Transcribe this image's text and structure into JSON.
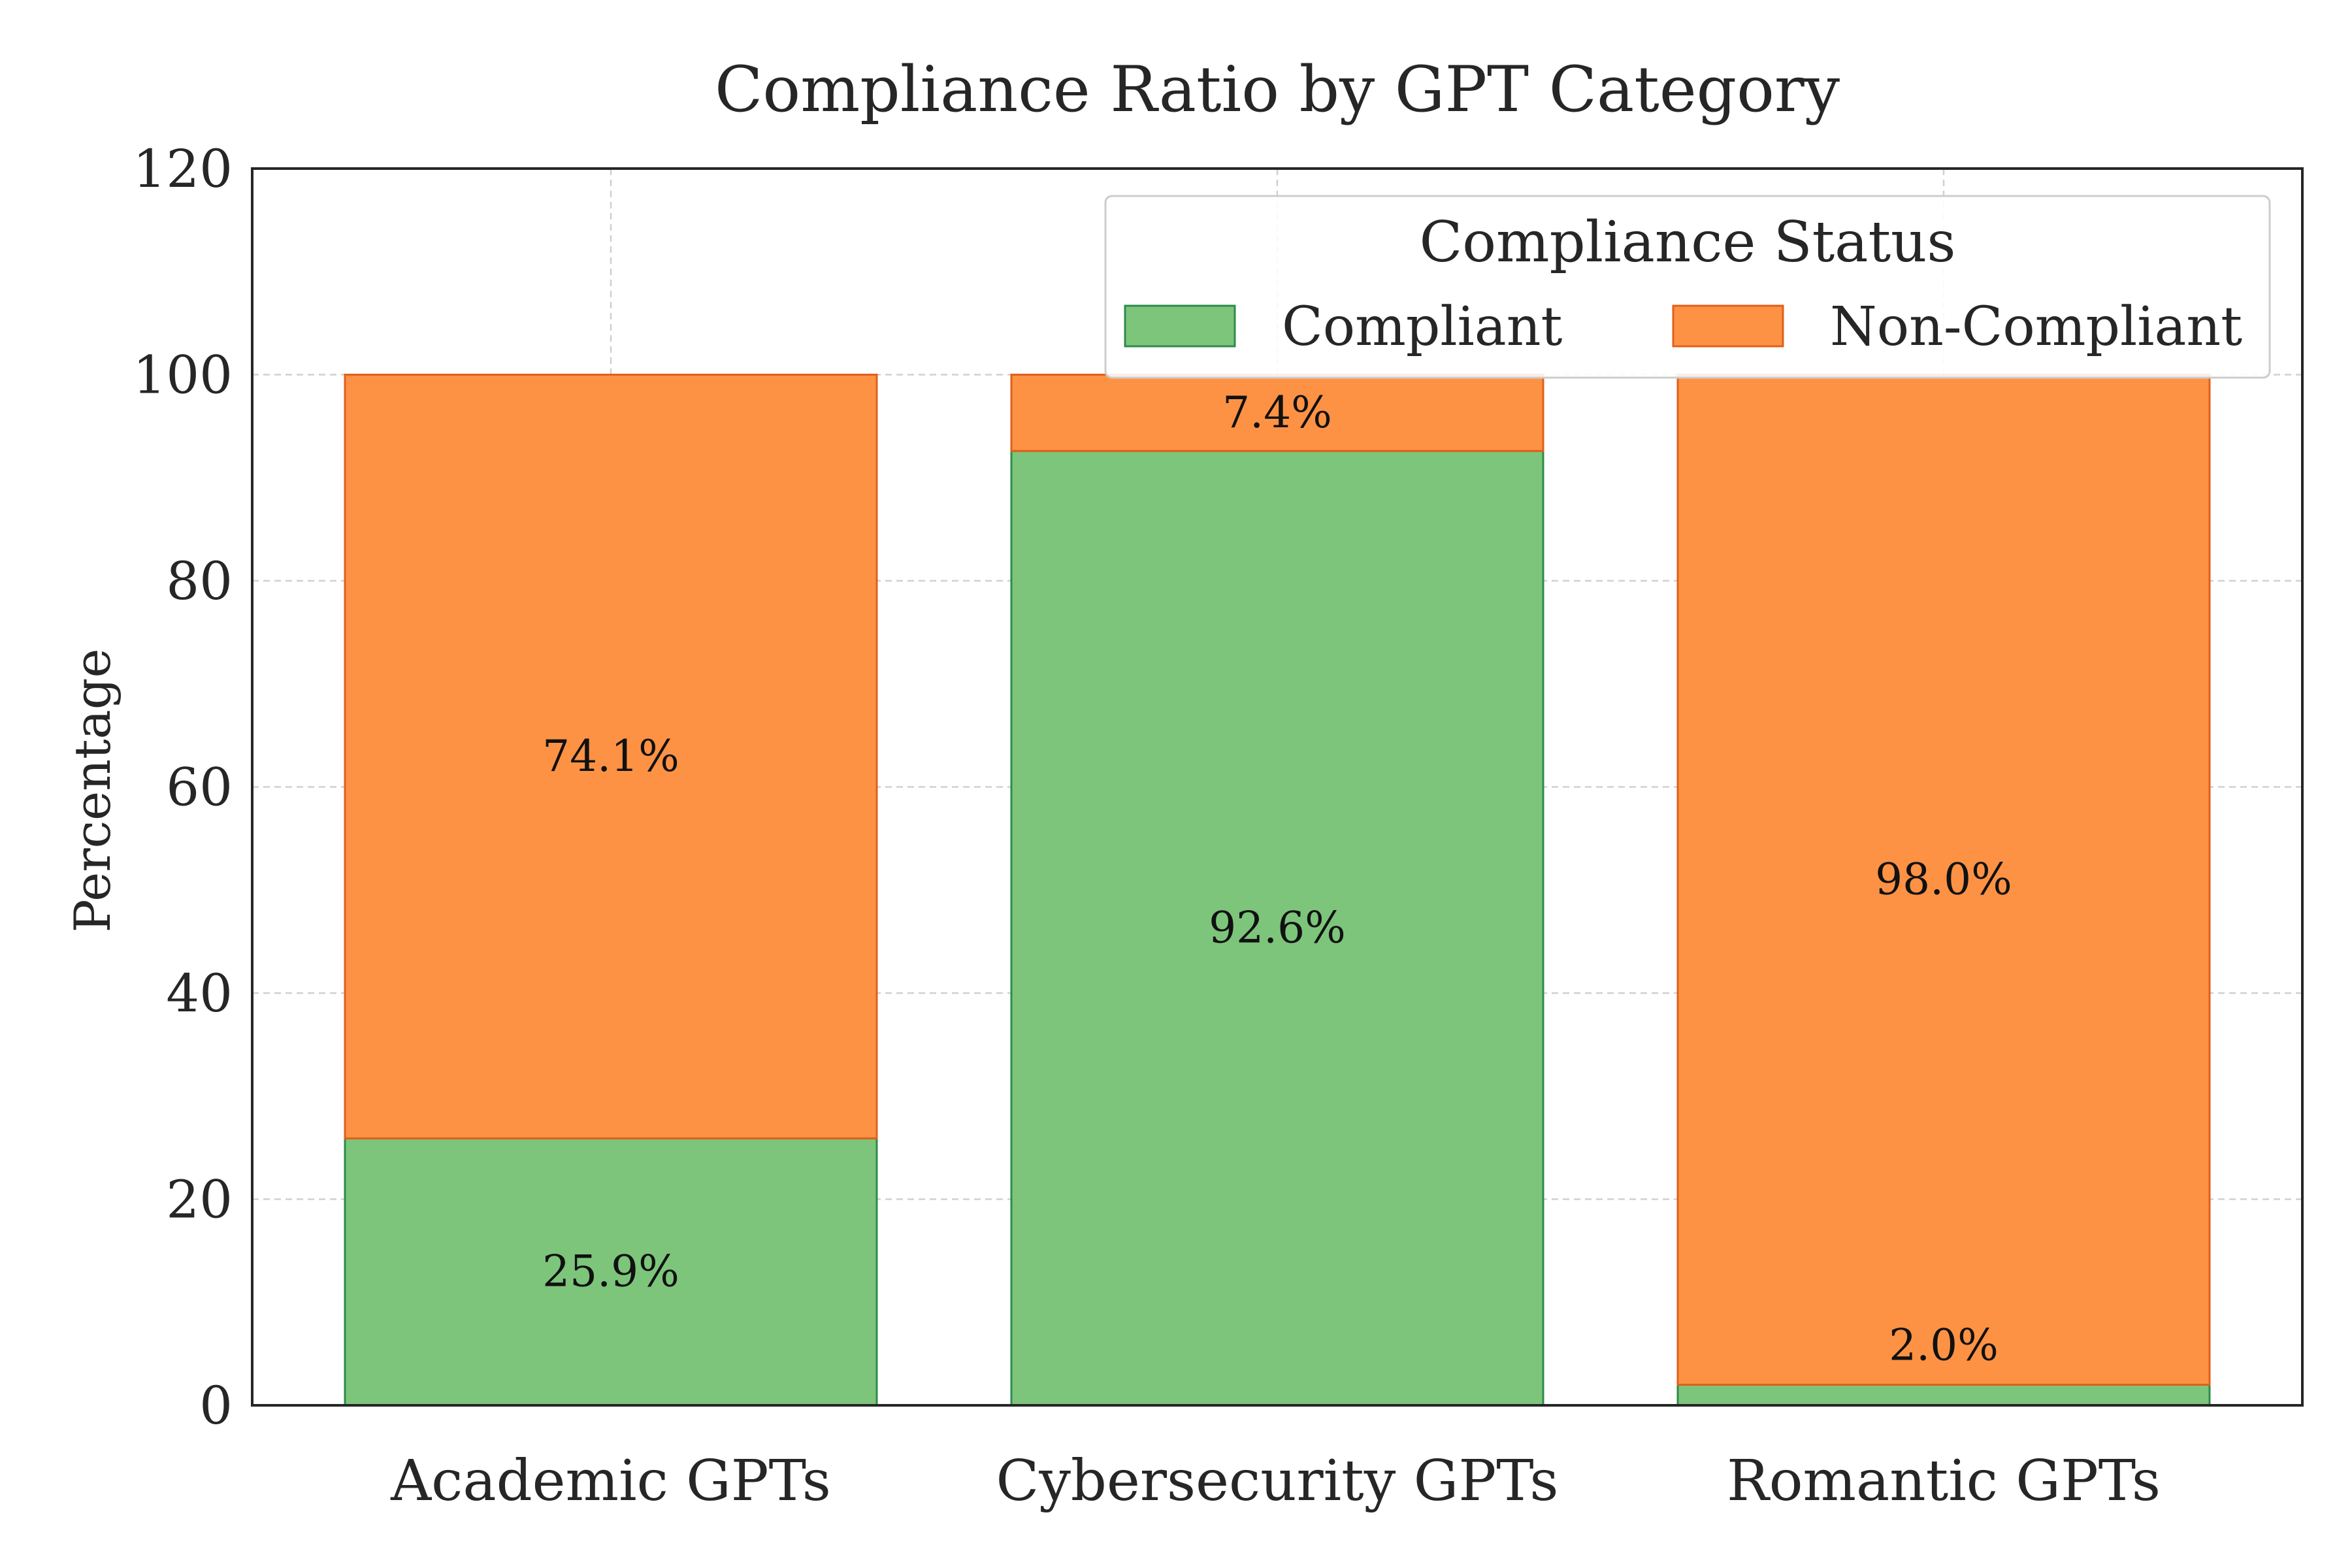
{
  "chart_data": {
    "type": "bar",
    "stacked": true,
    "title": "Compliance Ratio by GPT Category",
    "xlabel": "",
    "ylabel": "Percentage",
    "categories": [
      "Academic GPTs",
      "Cybersecurity GPTs",
      "Romantic GPTs"
    ],
    "series": [
      {
        "name": "Compliant",
        "values": [
          25.9,
          92.6,
          2.0
        ],
        "labels": [
          "25.9%",
          "92.6%",
          "2.0%"
        ],
        "color": "#7dc57b",
        "edge": "#2e8b4a"
      },
      {
        "name": "Non-Compliant",
        "values": [
          74.1,
          7.4,
          98.0
        ],
        "labels": [
          "74.1%",
          "7.4%",
          "98.0%"
        ],
        "color": "#fd9245",
        "edge": "#e0601a"
      }
    ],
    "ylim": [
      0,
      120
    ],
    "yticks": [
      "0",
      "20",
      "40",
      "60",
      "80",
      "100",
      "120"
    ],
    "grid": true,
    "legend": {
      "title": "Compliance Status",
      "placement": "top-right"
    }
  }
}
